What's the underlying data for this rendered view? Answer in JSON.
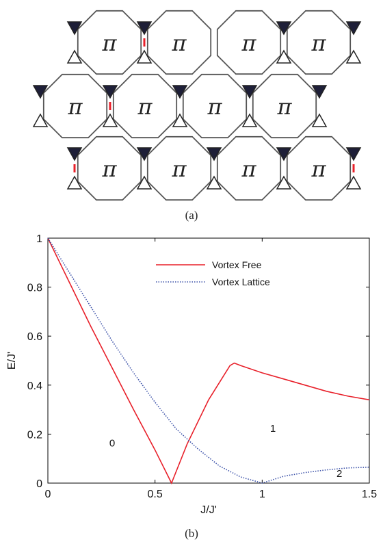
{
  "figure": {
    "caption_a": "(a)",
    "caption_b": "(b)",
    "lattice": {
      "plaquette_symbol": "π",
      "rows": 3,
      "columns": 4,
      "edge_color": "#555555",
      "link_color": "#e8202a",
      "triangle_dark": "#1e1f38"
    }
  },
  "chart_data": {
    "type": "line",
    "title": "",
    "xlabel": "J/J'",
    "ylabel": "E/J'",
    "xlim": [
      0,
      1.5
    ],
    "ylim": [
      0,
      1
    ],
    "xticks": [
      0,
      0.5,
      1,
      1.5
    ],
    "xtick_labels": [
      "0",
      "0.5",
      "1",
      "1.5"
    ],
    "yticks": [
      0,
      0.2,
      0.4,
      0.6,
      0.8,
      1
    ],
    "ytick_labels": [
      "0",
      "0.2",
      "0.4",
      "0.6",
      "0.8",
      "1"
    ],
    "grid": false,
    "legend_position": "top-center",
    "series": [
      {
        "name": "Vortex Free",
        "color": "#e8202a",
        "style": "solid",
        "x": [
          0,
          0.1,
          0.2,
          0.3,
          0.4,
          0.5,
          0.577,
          0.65,
          0.75,
          0.85,
          0.87,
          0.9,
          1.0,
          1.1,
          1.2,
          1.3,
          1.4,
          1.5
        ],
        "y": [
          1.0,
          0.82,
          0.64,
          0.47,
          0.3,
          0.135,
          0.0,
          0.16,
          0.34,
          0.48,
          0.49,
          0.48,
          0.45,
          0.425,
          0.4,
          0.375,
          0.355,
          0.34
        ]
      },
      {
        "name": "Vortex Lattice",
        "color": "#3a50a8",
        "style": "dotted",
        "x": [
          0,
          0.1,
          0.2,
          0.3,
          0.4,
          0.5,
          0.6,
          0.7,
          0.8,
          0.9,
          1.0,
          1.1,
          1.2,
          1.3,
          1.4,
          1.5
        ],
        "y": [
          1.0,
          0.86,
          0.72,
          0.58,
          0.45,
          0.33,
          0.22,
          0.14,
          0.07,
          0.025,
          0.0,
          0.028,
          0.043,
          0.054,
          0.062,
          0.065
        ]
      }
    ],
    "annotations": [
      {
        "text": "0",
        "x": 0.3,
        "y": 0.15
      },
      {
        "text": "1",
        "x": 1.05,
        "y": 0.21
      },
      {
        "text": "2",
        "x": 1.36,
        "y": 0.025
      }
    ]
  }
}
